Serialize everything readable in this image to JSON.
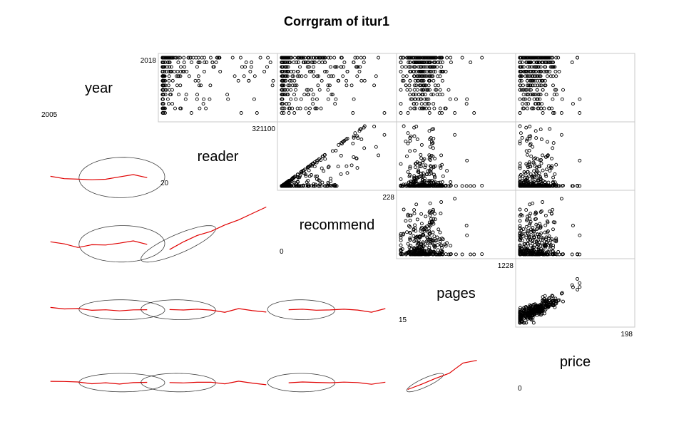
{
  "chart_data": {
    "type": "scatter",
    "title": "Corrgram of itur1",
    "variables": [
      {
        "name": "year",
        "min": "2005",
        "max": "2018"
      },
      {
        "name": "reader",
        "min": "20",
        "max": "321100"
      },
      {
        "name": "recommend",
        "min": "0",
        "max": "228"
      },
      {
        "name": "pages",
        "min": "15",
        "max": "1228"
      },
      {
        "name": "price",
        "min": "0",
        "max": "198"
      }
    ],
    "upper_panel": "points",
    "lower_panel": "ellipse with loess smooth",
    "diag_panel": "variable name with range",
    "grid": false,
    "colors": {
      "points": "#000000",
      "smooth": "#e00000",
      "ellipse": "#333333",
      "frame": "#c8c8c8"
    }
  }
}
